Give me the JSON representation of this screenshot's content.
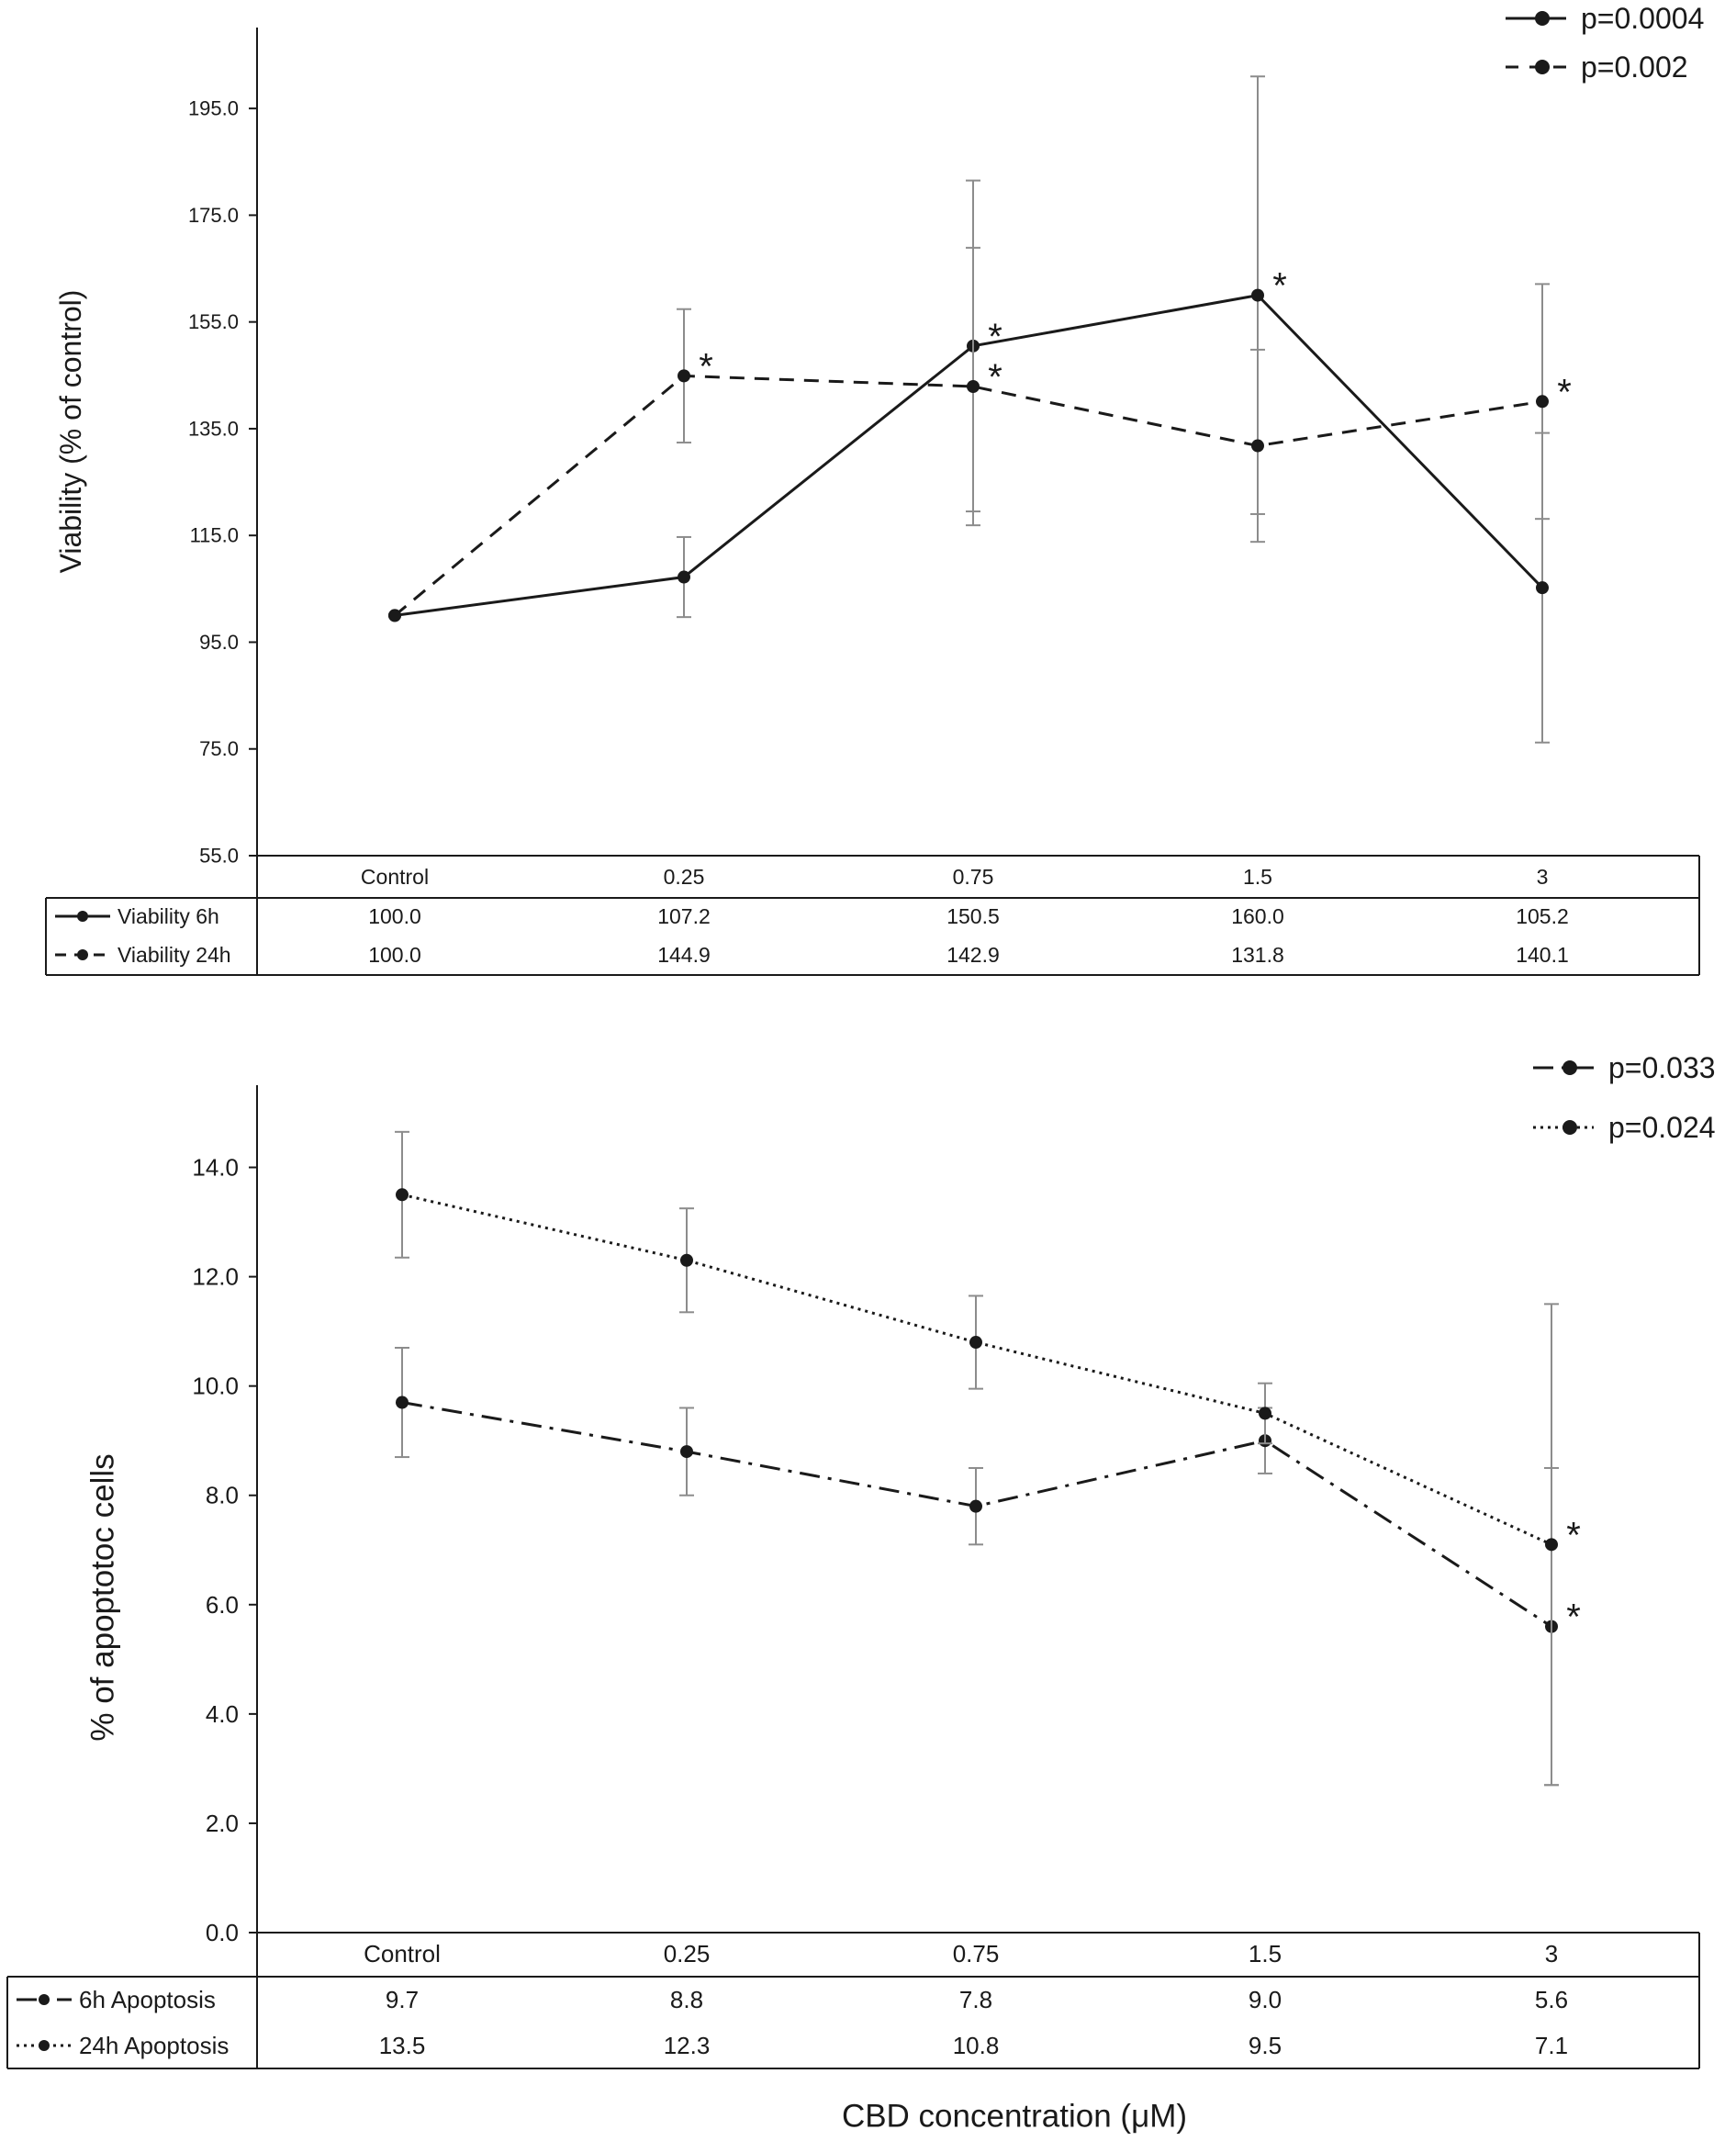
{
  "chart_data": [
    {
      "type": "line",
      "ylabel": "Viability (% of control)",
      "xlabel": "",
      "ylim": [
        55,
        205
      ],
      "yticks": [
        "55.0",
        "75.0",
        "95.0",
        "115.0",
        "135.0",
        "155.0",
        "175.0",
        "195.0"
      ],
      "grid": false,
      "legend_position": "top-right",
      "categories": [
        "Control",
        "0.25",
        "0.75",
        "1.5",
        "3"
      ],
      "series": [
        {
          "name": "Viability 6h",
          "legend_label": "p=0.0004",
          "style": "solid",
          "values": [
            100.0,
            107.2,
            150.5,
            160.0,
            105.2
          ],
          "labels": [
            "100.0",
            "107.2",
            "150.5",
            "160.0",
            "105.2"
          ],
          "error": [
            0,
            7.5,
            31,
            41,
            29
          ],
          "significant": [
            false,
            false,
            true,
            true,
            false
          ]
        },
        {
          "name": "Viability 24h",
          "legend_label": "p=0.002",
          "style": "dashed",
          "values": [
            100.0,
            144.9,
            142.9,
            131.8,
            140.1
          ],
          "labels": [
            "100.0",
            "144.9",
            "142.9",
            "131.8",
            "140.1"
          ],
          "error": [
            0,
            12.5,
            26,
            18,
            22
          ],
          "significant": [
            false,
            true,
            true,
            false,
            true
          ]
        }
      ],
      "annotation": "*"
    },
    {
      "type": "line",
      "ylabel": "% of apoptotoc cells",
      "xlabel": "CBD concentration (μM)",
      "ylim": [
        0,
        15
      ],
      "yticks": [
        "0.0",
        "2.0",
        "4.0",
        "6.0",
        "8.0",
        "10.0",
        "12.0",
        "14.0"
      ],
      "grid": false,
      "legend_position": "top-right",
      "categories": [
        "Control",
        "0.25",
        "0.75",
        "1.5",
        "3"
      ],
      "series": [
        {
          "name": "6h Apoptosis",
          "legend_label": "p=0.033",
          "style": "dashdot",
          "values": [
            9.7,
            8.8,
            7.8,
            9.0,
            5.6
          ],
          "labels": [
            "9.7",
            "8.8",
            "7.8",
            "9.0",
            "5.6"
          ],
          "error": [
            1.0,
            0.8,
            0.7,
            0.6,
            2.9
          ],
          "significant": [
            false,
            false,
            false,
            false,
            true
          ]
        },
        {
          "name": "24h Apoptosis",
          "legend_label": "p=0.024",
          "style": "dotted",
          "values": [
            13.5,
            12.3,
            10.8,
            9.5,
            7.1
          ],
          "labels": [
            "13.5",
            "12.3",
            "10.8",
            "9.5",
            "7.1"
          ],
          "error": [
            1.15,
            0.95,
            0.85,
            0.55,
            4.4
          ],
          "significant": [
            false,
            false,
            false,
            false,
            true
          ]
        }
      ],
      "annotation": "*"
    }
  ],
  "colors": {
    "line": "#1a1a1a",
    "errorbar": "#8c8c8c",
    "frame": "#1a1a1a",
    "text": "#1a1a1a"
  }
}
